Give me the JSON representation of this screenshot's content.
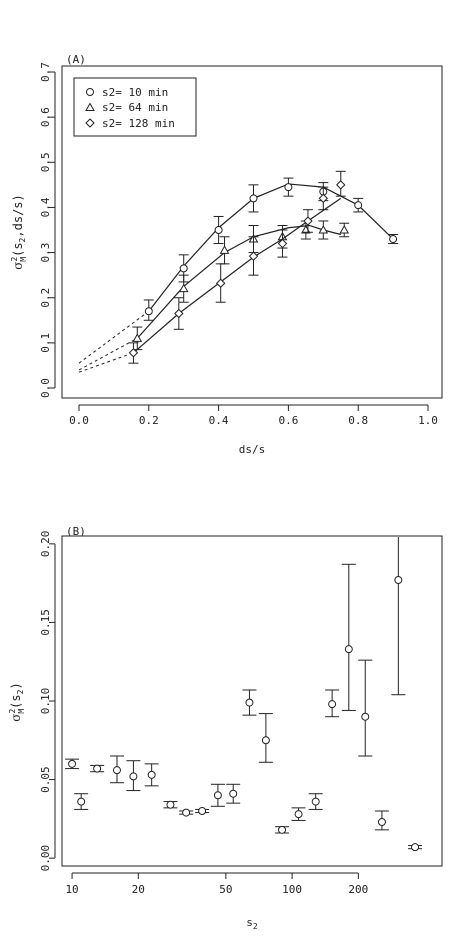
{
  "chart_data": [
    {
      "type": "line",
      "panel_label": "(A)",
      "xlabel": "ds/s",
      "ylabel_main": "σ",
      "ylabel_sup": "2",
      "ylabel_sub": "M",
      "ylabel_args": "(s",
      "ylabel_args_sub": "2",
      "ylabel_tail": ",ds/s)",
      "xlim": [
        0.0,
        1.0
      ],
      "ylim": [
        0.0,
        0.7
      ],
      "xticks": [
        "0.0",
        "0.2",
        "0.4",
        "0.6",
        "0.8",
        "1.0"
      ],
      "yticks": [
        "0.0",
        "0.1",
        "0.2",
        "0.3",
        "0.4",
        "0.5",
        "0.6",
        "0.7"
      ],
      "legend": [
        {
          "marker": "circle",
          "text": "s2= 10 min"
        },
        {
          "marker": "triangle",
          "text": "s2= 64 min"
        },
        {
          "marker": "diamond",
          "text": "s2= 128 min"
        }
      ],
      "series": [
        {
          "name": "s2= 10 min",
          "marker": "circle",
          "points": [
            {
              "x": 0.2,
              "y": 0.17,
              "lo": 0.15,
              "hi": 0.195
            },
            {
              "x": 0.3,
              "y": 0.265,
              "lo": 0.235,
              "hi": 0.295
            },
            {
              "x": 0.4,
              "y": 0.35,
              "lo": 0.32,
              "hi": 0.38
            },
            {
              "x": 0.5,
              "y": 0.42,
              "lo": 0.39,
              "hi": 0.45
            },
            {
              "x": 0.6,
              "y": 0.445,
              "lo": 0.425,
              "hi": 0.465
            },
            {
              "x": 0.7,
              "y": 0.435,
              "lo": 0.415,
              "hi": 0.455
            },
            {
              "x": 0.8,
              "y": 0.405,
              "lo": 0.39,
              "hi": 0.42
            },
            {
              "x": 0.9,
              "y": 0.33,
              "lo": 0.32,
              "hi": 0.34
            }
          ],
          "fit": [
            [
              0.2,
              0.17
            ],
            [
              0.3,
              0.27
            ],
            [
              0.4,
              0.355
            ],
            [
              0.5,
              0.42
            ],
            [
              0.6,
              0.452
            ],
            [
              0.7,
              0.445
            ],
            [
              0.8,
              0.405
            ],
            [
              0.9,
              0.33
            ]
          ],
          "extrapolation": [
            [
              0.0,
              0.055
            ],
            [
              0.2,
              0.17
            ]
          ]
        },
        {
          "name": "s2= 64 min",
          "marker": "triangle",
          "points": [
            {
              "x": 0.167,
              "y": 0.11,
              "lo": 0.085,
              "hi": 0.135
            },
            {
              "x": 0.3,
              "y": 0.22,
              "lo": 0.19,
              "hi": 0.25
            },
            {
              "x": 0.417,
              "y": 0.305,
              "lo": 0.275,
              "hi": 0.335
            },
            {
              "x": 0.5,
              "y": 0.33,
              "lo": 0.3,
              "hi": 0.36
            },
            {
              "x": 0.583,
              "y": 0.335,
              "lo": 0.31,
              "hi": 0.36
            },
            {
              "x": 0.65,
              "y": 0.35,
              "lo": 0.33,
              "hi": 0.37
            },
            {
              "x": 0.7,
              "y": 0.35,
              "lo": 0.33,
              "hi": 0.37
            },
            {
              "x": 0.76,
              "y": 0.35,
              "lo": 0.335,
              "hi": 0.365
            }
          ],
          "fit": [
            [
              0.167,
              0.11
            ],
            [
              0.3,
              0.225
            ],
            [
              0.417,
              0.3
            ],
            [
              0.5,
              0.335
            ],
            [
              0.6,
              0.355
            ],
            [
              0.66,
              0.36
            ],
            [
              0.7,
              0.35
            ],
            [
              0.75,
              0.34
            ]
          ],
          "extrapolation": [
            [
              0.0,
              0.04
            ],
            [
              0.167,
              0.11
            ]
          ]
        },
        {
          "name": "s2= 128 min",
          "marker": "diamond",
          "points": [
            {
              "x": 0.156,
              "y": 0.078,
              "lo": 0.055,
              "hi": 0.1
            },
            {
              "x": 0.286,
              "y": 0.165,
              "lo": 0.13,
              "hi": 0.2
            },
            {
              "x": 0.406,
              "y": 0.232,
              "lo": 0.19,
              "hi": 0.275
            },
            {
              "x": 0.5,
              "y": 0.292,
              "lo": 0.25,
              "hi": 0.335
            },
            {
              "x": 0.583,
              "y": 0.32,
              "lo": 0.29,
              "hi": 0.35
            },
            {
              "x": 0.656,
              "y": 0.37,
              "lo": 0.345,
              "hi": 0.395
            },
            {
              "x": 0.7,
              "y": 0.42,
              "lo": 0.395,
              "hi": 0.445
            },
            {
              "x": 0.75,
              "y": 0.45,
              "lo": 0.425,
              "hi": 0.48
            }
          ],
          "fit": [
            [
              0.156,
              0.078
            ],
            [
              0.286,
              0.165
            ],
            [
              0.406,
              0.235
            ],
            [
              0.5,
              0.29
            ],
            [
              0.583,
              0.33
            ],
            [
              0.656,
              0.37
            ],
            [
              0.75,
              0.42
            ]
          ],
          "extrapolation": [
            [
              0.0,
              0.035
            ],
            [
              0.156,
              0.078
            ]
          ]
        }
      ]
    },
    {
      "type": "scatter",
      "panel_label": "(B)",
      "xlabel_main": "s",
      "xlabel_sub": "2",
      "ylabel_main": "σ",
      "ylabel_sup": "2",
      "ylabel_sub": "M",
      "ylabel_args": "(s",
      "ylabel_args_sub": "2",
      "ylabel_tail": ")",
      "x_scale": "log",
      "xlim": [
        9,
        480
      ],
      "ylim": [
        -0.005,
        0.205
      ],
      "xticks": [
        {
          "value": 10,
          "label": "10"
        },
        {
          "value": 20,
          "label": "20"
        },
        {
          "value": 50,
          "label": "50"
        },
        {
          "value": 100,
          "label": "100"
        },
        {
          "value": 200,
          "label": "200"
        }
      ],
      "yticks": [
        {
          "value": 0.0,
          "label": "0.00"
        },
        {
          "value": 0.05,
          "label": "0.05"
        },
        {
          "value": 0.1,
          "label": "0.10"
        },
        {
          "value": 0.15,
          "label": "0.15"
        },
        {
          "value": 0.2,
          "label": "0.20"
        }
      ],
      "points": [
        {
          "x": 10,
          "y": 0.06,
          "lo": 0.057,
          "hi": 0.063
        },
        {
          "x": 11,
          "y": 0.036,
          "lo": 0.031,
          "hi": 0.041
        },
        {
          "x": 13,
          "y": 0.057,
          "lo": 0.055,
          "hi": 0.059
        },
        {
          "x": 16,
          "y": 0.056,
          "lo": 0.048,
          "hi": 0.065
        },
        {
          "x": 19,
          "y": 0.052,
          "lo": 0.043,
          "hi": 0.062
        },
        {
          "x": 23,
          "y": 0.053,
          "lo": 0.046,
          "hi": 0.06
        },
        {
          "x": 28,
          "y": 0.034,
          "lo": 0.032,
          "hi": 0.036
        },
        {
          "x": 33,
          "y": 0.029,
          "lo": 0.028,
          "hi": 0.03
        },
        {
          "x": 39,
          "y": 0.03,
          "lo": 0.029,
          "hi": 0.031
        },
        {
          "x": 46,
          "y": 0.04,
          "lo": 0.033,
          "hi": 0.047
        },
        {
          "x": 54,
          "y": 0.041,
          "lo": 0.035,
          "hi": 0.047
        },
        {
          "x": 64,
          "y": 0.099,
          "lo": 0.091,
          "hi": 0.107
        },
        {
          "x": 76,
          "y": 0.075,
          "lo": 0.061,
          "hi": 0.092
        },
        {
          "x": 90,
          "y": 0.018,
          "lo": 0.016,
          "hi": 0.02
        },
        {
          "x": 107,
          "y": 0.028,
          "lo": 0.024,
          "hi": 0.032
        },
        {
          "x": 128,
          "y": 0.036,
          "lo": 0.031,
          "hi": 0.041
        },
        {
          "x": 152,
          "y": 0.098,
          "lo": 0.09,
          "hi": 0.107
        },
        {
          "x": 181,
          "y": 0.133,
          "lo": 0.094,
          "hi": 0.187
        },
        {
          "x": 215,
          "y": 0.09,
          "lo": 0.065,
          "hi": 0.126
        },
        {
          "x": 256,
          "y": 0.023,
          "lo": 0.018,
          "hi": 0.03
        },
        {
          "x": 304,
          "y": 0.177,
          "lo": 0.104,
          "hi": 0.21
        },
        {
          "x": 362,
          "y": 0.007,
          "lo": 0.006,
          "hi": 0.008
        }
      ]
    }
  ]
}
